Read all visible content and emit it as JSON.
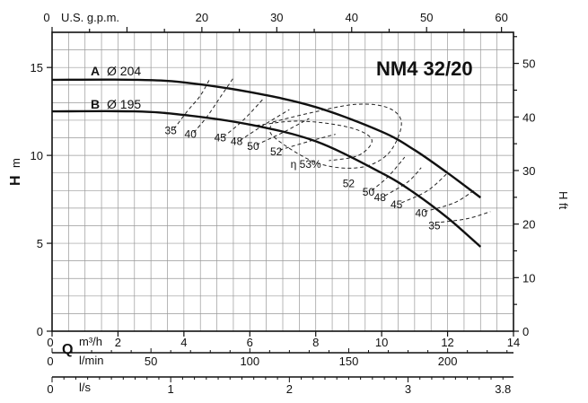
{
  "chart_data": {
    "type": "line",
    "title": "NM4 32/20",
    "axes": {
      "gpm": {
        "label": "U.S. g.p.m.",
        "ticks": [
          0,
          20,
          30,
          40,
          50,
          60
        ],
        "range": [
          0,
          61.6
        ]
      },
      "m3h": {
        "label_q": "Q",
        "label": "m³/h",
        "ticks": [
          0,
          2,
          4,
          6,
          8,
          10,
          12,
          14
        ],
        "range": [
          0,
          14
        ]
      },
      "lmin": {
        "label": "l/min",
        "ticks": [
          0,
          50,
          100,
          150,
          200
        ],
        "range": [
          0,
          233.3
        ]
      },
      "ls": {
        "label": "l/s",
        "ticks": [
          0,
          1,
          2,
          3,
          3.8
        ],
        "range": [
          0,
          3.889
        ]
      },
      "hm": {
        "label": "H",
        "unit": "m",
        "ticks": [
          0,
          5,
          10,
          15
        ],
        "range": [
          0,
          17
        ]
      },
      "hft": {
        "label": "H ft",
        "ticks": [
          0,
          10,
          20,
          30,
          40,
          50
        ],
        "range": [
          0,
          55.8
        ]
      }
    },
    "series": [
      {
        "name": "A",
        "diameter": "Ø 204",
        "unit_x": "m³/h",
        "unit_y": "m",
        "points": [
          [
            0,
            14.3
          ],
          [
            2.5,
            14.3
          ],
          [
            4,
            14.15
          ],
          [
            6,
            13.6
          ],
          [
            8,
            12.75
          ],
          [
            10,
            11.35
          ],
          [
            11,
            10.3
          ],
          [
            12,
            9.0
          ],
          [
            13,
            7.6
          ]
        ]
      },
      {
        "name": "B",
        "diameter": "Ø 195",
        "unit_x": "m³/h",
        "unit_y": "m",
        "points": [
          [
            0,
            12.5
          ],
          [
            2.5,
            12.5
          ],
          [
            4,
            12.3
          ],
          [
            6,
            11.75
          ],
          [
            8,
            10.8
          ],
          [
            10,
            9.0
          ],
          [
            11,
            7.85
          ],
          [
            12,
            6.45
          ],
          [
            13,
            4.8
          ]
        ]
      }
    ],
    "efficiency": {
      "label_prefix": "η",
      "labels": [
        {
          "text": "35",
          "x": 3.6,
          "y": 11.2
        },
        {
          "text": "40",
          "x": 4.2,
          "y": 11.0
        },
        {
          "text": "45",
          "x": 5.1,
          "y": 10.8
        },
        {
          "text": "48",
          "x": 5.6,
          "y": 10.6
        },
        {
          "text": "50",
          "x": 6.1,
          "y": 10.3
        },
        {
          "text": "52",
          "x": 6.8,
          "y": 10.0
        },
        {
          "text": "η 53%",
          "x": 7.7,
          "y": 9.3
        },
        {
          "text": "52",
          "x": 9.0,
          "y": 8.2
        },
        {
          "text": "50",
          "x": 9.6,
          "y": 7.7
        },
        {
          "text": "48",
          "x": 9.95,
          "y": 7.4
        },
        {
          "text": "45",
          "x": 10.45,
          "y": 7.0
        },
        {
          "text": "40",
          "x": 11.2,
          "y": 6.5
        },
        {
          "text": "35",
          "x": 11.6,
          "y": 5.8
        }
      ],
      "loops": [
        {
          "value": 53,
          "points": [
            [
              6.7,
              11.9
            ],
            [
              7.8,
              12.4
            ],
            [
              9.2,
              12.9
            ],
            [
              10.2,
              12.7
            ],
            [
              10.6,
              11.8
            ],
            [
              10.2,
              10.1
            ],
            [
              9.3,
              9.3
            ],
            [
              8.0,
              9.6
            ],
            [
              6.7,
              11.1
            ],
            [
              6.7,
              11.9
            ]
          ]
        },
        {
          "value": 52,
          "points": [
            [
              6.2,
              11.7
            ],
            [
              7.5,
              11.95
            ],
            [
              9.0,
              11.6
            ],
            [
              9.7,
              10.9
            ],
            [
              9.3,
              10.0
            ],
            [
              8.4,
              9.7
            ]
          ]
        }
      ],
      "arcs_left": [
        {
          "value": 35,
          "points": [
            [
              3.7,
              11.5
            ],
            [
              4.1,
              12.5
            ],
            [
              4.5,
              13.4
            ],
            [
              4.8,
              14.4
            ]
          ]
        },
        {
          "value": 40,
          "points": [
            [
              4.3,
              11.3
            ],
            [
              4.7,
              12.2
            ],
            [
              5.1,
              13.3
            ],
            [
              5.5,
              14.4
            ]
          ]
        },
        {
          "value": 45,
          "points": [
            [
              5.2,
              11.05
            ],
            [
              5.8,
              12.0
            ],
            [
              6.4,
              13.2
            ]
          ]
        },
        {
          "value": 48,
          "points": [
            [
              5.7,
              10.85
            ],
            [
              6.4,
              11.7
            ],
            [
              7.2,
              12.6
            ]
          ]
        },
        {
          "value": 50,
          "points": [
            [
              6.2,
              10.6
            ],
            [
              7.0,
              11.3
            ],
            [
              7.8,
              12.1
            ]
          ]
        },
        {
          "value": 52,
          "points": [
            [
              6.9,
              10.3
            ],
            [
              7.8,
              10.8
            ],
            [
              8.6,
              11.2
            ]
          ]
        }
      ],
      "arcs_right": [
        {
          "value": 50,
          "points": [
            [
              9.7,
              8.0
            ],
            [
              10.2,
              8.8
            ],
            [
              10.7,
              9.9
            ]
          ]
        },
        {
          "value": 48,
          "points": [
            [
              10.1,
              7.7
            ],
            [
              10.8,
              8.5
            ],
            [
              11.2,
              9.3
            ]
          ]
        },
        {
          "value": 45,
          "points": [
            [
              10.6,
              7.3
            ],
            [
              11.4,
              8.0
            ],
            [
              12.0,
              9.0
            ]
          ]
        },
        {
          "value": 40,
          "points": [
            [
              11.3,
              6.8
            ],
            [
              12.2,
              7.3
            ],
            [
              12.8,
              8.0
            ]
          ]
        },
        {
          "value": 35,
          "points": [
            [
              11.8,
              6.2
            ],
            [
              12.6,
              6.4
            ],
            [
              13.3,
              6.8
            ]
          ]
        }
      ]
    },
    "grid": true
  }
}
